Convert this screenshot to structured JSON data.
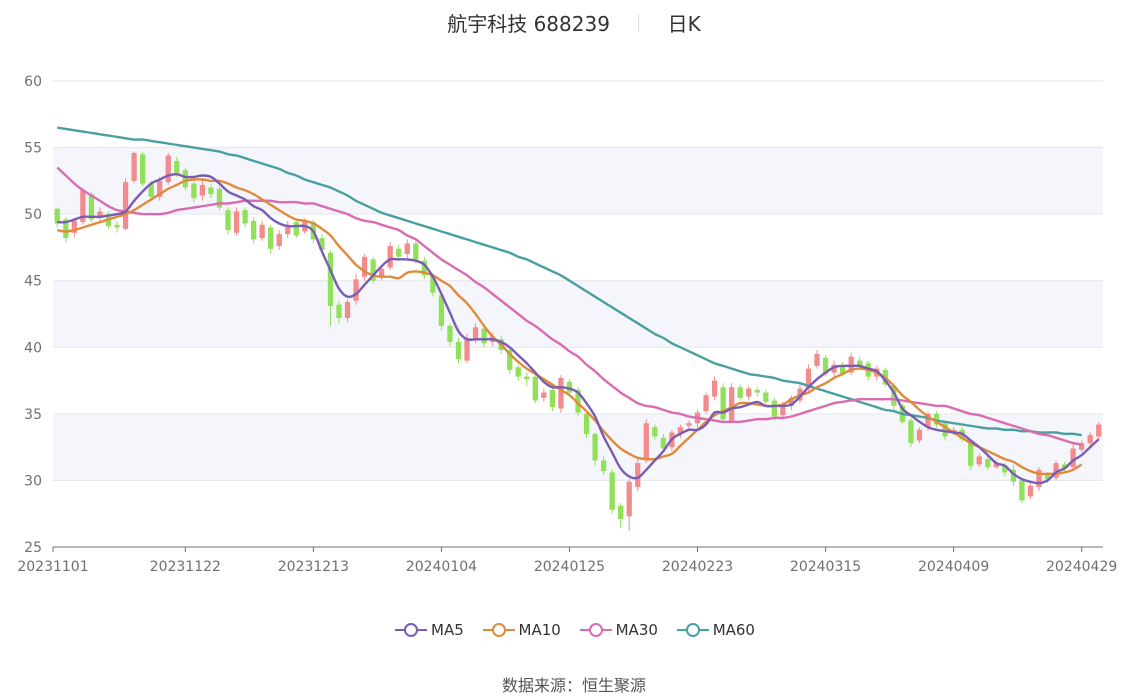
{
  "header": {
    "title": "航宇科技 688239",
    "period": "日K"
  },
  "source": {
    "label": "数据来源：",
    "value": "恒生聚源"
  },
  "colors": {
    "up": "#f28c8c",
    "down": "#91e05a",
    "MA5": "#7b5cb5",
    "MA10": "#e08a3c",
    "MA30": "#d96bb3",
    "MA60": "#4aa0a0",
    "band": "#f5f6fb",
    "grid": "#e3e6ee"
  },
  "chart_data": {
    "type": "candlestick",
    "ylim": [
      25,
      60
    ],
    "y_ticks": [
      "25",
      "30",
      "35",
      "40",
      "45",
      "50",
      "55",
      "60"
    ],
    "x_tick_labels": [
      "20231101",
      "20231122",
      "20231213",
      "20240104",
      "20240125",
      "20240223",
      "20240315",
      "20240409",
      "20240429"
    ],
    "x_tick_index": [
      0,
      15,
      30,
      45,
      60,
      75,
      90,
      105,
      120
    ],
    "legend": [
      {
        "name": "MA5",
        "color": "#7b5cb5"
      },
      {
        "name": "MA10",
        "color": "#e08a3c"
      },
      {
        "name": "MA30",
        "color": "#d96bb3"
      },
      {
        "name": "MA60",
        "color": "#4aa0a0"
      }
    ],
    "candles": [
      [
        50.4,
        49.3,
        50.5,
        49.0
      ],
      [
        49.6,
        48.2,
        49.8,
        47.9
      ],
      [
        48.6,
        49.5,
        49.7,
        48.3
      ],
      [
        49.4,
        51.8,
        52.0,
        49.2
      ],
      [
        51.5,
        49.6,
        51.7,
        49.4
      ],
      [
        49.7,
        50.2,
        50.5,
        49.4
      ],
      [
        50.0,
        49.1,
        50.2,
        48.9
      ],
      [
        49.2,
        49.0,
        49.5,
        48.6
      ],
      [
        48.9,
        52.4,
        52.7,
        48.8
      ],
      [
        52.5,
        54.6,
        54.7,
        52.3
      ],
      [
        54.5,
        52.3,
        54.7,
        52.1
      ],
      [
        52.3,
        51.3,
        52.5,
        51.0
      ],
      [
        51.3,
        52.5,
        52.8,
        51.0
      ],
      [
        52.4,
        54.4,
        54.6,
        52.2
      ],
      [
        54.0,
        53.1,
        54.3,
        52.8
      ],
      [
        53.3,
        52.0,
        53.5,
        51.8
      ],
      [
        52.3,
        51.2,
        52.5,
        50.9
      ],
      [
        51.4,
        52.2,
        52.6,
        51.0
      ],
      [
        52.0,
        51.5,
        52.3,
        51.2
      ],
      [
        51.9,
        50.5,
        52.1,
        50.3
      ],
      [
        50.3,
        48.8,
        50.5,
        48.5
      ],
      [
        48.6,
        50.2,
        50.5,
        48.4
      ],
      [
        50.3,
        49.3,
        50.5,
        49.0
      ],
      [
        49.5,
        48.1,
        49.8,
        47.8
      ],
      [
        48.2,
        49.2,
        49.5,
        48.0
      ],
      [
        49.0,
        47.4,
        49.2,
        47.0
      ],
      [
        47.6,
        48.5,
        48.8,
        47.3
      ],
      [
        48.5,
        49.2,
        49.5,
        48.2
      ],
      [
        49.4,
        48.4,
        49.6,
        48.2
      ],
      [
        48.7,
        49.5,
        49.7,
        48.5
      ],
      [
        49.4,
        48.1,
        49.6,
        47.8
      ],
      [
        48.2,
        47.3,
        48.5,
        47.0
      ],
      [
        47.1,
        43.1,
        47.3,
        41.6
      ],
      [
        43.2,
        42.2,
        43.5,
        41.8
      ],
      [
        42.2,
        43.4,
        43.6,
        41.9
      ],
      [
        43.5,
        45.1,
        45.5,
        43.2
      ],
      [
        45.3,
        46.8,
        47.0,
        45.0
      ],
      [
        46.6,
        45.0,
        46.8,
        44.8
      ],
      [
        45.2,
        45.9,
        46.1,
        45.0
      ],
      [
        46.0,
        47.6,
        47.9,
        45.8
      ],
      [
        47.4,
        46.8,
        47.7,
        46.5
      ],
      [
        47.0,
        47.8,
        48.1,
        46.7
      ],
      [
        47.8,
        46.6,
        48.0,
        46.3
      ],
      [
        46.5,
        45.4,
        46.8,
        45.1
      ],
      [
        45.4,
        44.1,
        45.6,
        43.8
      ],
      [
        43.9,
        41.6,
        44.1,
        41.3
      ],
      [
        41.6,
        40.4,
        41.8,
        40.1
      ],
      [
        40.4,
        39.1,
        40.7,
        38.8
      ],
      [
        39.0,
        40.7,
        41.0,
        38.8
      ],
      [
        40.6,
        41.5,
        41.8,
        40.3
      ],
      [
        41.4,
        40.3,
        41.6,
        40.0
      ],
      [
        40.4,
        40.8,
        41.1,
        40.1
      ],
      [
        40.6,
        39.8,
        40.9,
        39.5
      ],
      [
        39.8,
        38.3,
        40.1,
        38.0
      ],
      [
        38.5,
        37.8,
        38.7,
        37.5
      ],
      [
        37.8,
        37.6,
        38.1,
        37.1
      ],
      [
        37.8,
        36.0,
        38.0,
        35.8
      ],
      [
        36.2,
        36.6,
        36.9,
        35.9
      ],
      [
        36.8,
        35.5,
        37.1,
        35.2
      ],
      [
        35.4,
        37.7,
        37.9,
        35.1
      ],
      [
        37.4,
        36.6,
        37.6,
        36.4
      ],
      [
        36.8,
        35.1,
        37.0,
        34.8
      ],
      [
        35.0,
        33.5,
        35.2,
        33.2
      ],
      [
        33.5,
        31.5,
        33.6,
        31.1
      ],
      [
        31.5,
        30.7,
        31.8,
        30.4
      ],
      [
        30.6,
        27.8,
        30.8,
        27.5
      ],
      [
        28.1,
        27.1,
        28.3,
        26.4
      ],
      [
        27.3,
        29.9,
        30.1,
        26.2
      ],
      [
        29.5,
        31.3,
        31.6,
        29.2
      ],
      [
        31.5,
        34.3,
        34.6,
        31.3
      ],
      [
        34.0,
        33.3,
        34.2,
        33.0
      ],
      [
        33.2,
        32.4,
        33.5,
        32.1
      ],
      [
        32.5,
        33.6,
        33.8,
        32.2
      ],
      [
        33.5,
        34.0,
        34.2,
        33.2
      ],
      [
        34.1,
        34.3,
        34.5,
        33.8
      ],
      [
        34.3,
        35.1,
        35.3,
        34.0
      ],
      [
        35.2,
        36.4,
        36.6,
        35.0
      ],
      [
        36.3,
        37.5,
        37.8,
        36.0
      ],
      [
        37.0,
        34.6,
        37.3,
        34.3
      ],
      [
        34.5,
        37.0,
        37.3,
        34.3
      ],
      [
        37.0,
        36.2,
        37.2,
        36.0
      ],
      [
        36.3,
        36.9,
        37.1,
        36.0
      ],
      [
        36.8,
        36.6,
        37.0,
        36.3
      ],
      [
        36.6,
        35.9,
        36.8,
        35.6
      ],
      [
        36.0,
        34.8,
        36.2,
        34.5
      ],
      [
        34.9,
        35.6,
        35.9,
        34.6
      ],
      [
        35.6,
        36.2,
        36.4,
        35.3
      ],
      [
        36.0,
        36.9,
        37.2,
        35.8
      ],
      [
        36.9,
        38.4,
        38.7,
        36.7
      ],
      [
        38.6,
        39.5,
        39.8,
        38.4
      ],
      [
        39.2,
        38.0,
        39.4,
        37.8
      ],
      [
        38.1,
        38.7,
        39.0,
        37.8
      ],
      [
        38.6,
        38.0,
        38.9,
        37.8
      ],
      [
        38.1,
        39.3,
        39.6,
        37.9
      ],
      [
        39.0,
        38.6,
        39.3,
        38.4
      ],
      [
        38.8,
        37.8,
        39.0,
        37.5
      ],
      [
        37.8,
        38.4,
        38.6,
        37.5
      ],
      [
        38.3,
        37.2,
        38.5,
        37.0
      ],
      [
        37.1,
        35.6,
        37.3,
        35.3
      ],
      [
        35.6,
        34.4,
        35.8,
        34.2
      ],
      [
        34.5,
        32.8,
        34.7,
        32.5
      ],
      [
        33.0,
        33.8,
        34.0,
        32.8
      ],
      [
        34.0,
        35.0,
        35.2,
        33.7
      ],
      [
        35.0,
        34.2,
        35.2,
        34.0
      ],
      [
        34.3,
        33.3,
        34.5,
        33.0
      ],
      [
        33.6,
        33.8,
        34.0,
        33.4
      ],
      [
        33.8,
        33.1,
        34.0,
        32.9
      ],
      [
        32.9,
        31.1,
        33.1,
        30.8
      ],
      [
        31.2,
        31.8,
        32.0,
        31.0
      ],
      [
        31.6,
        31.0,
        31.8,
        30.8
      ],
      [
        31.0,
        31.3,
        31.5,
        30.9
      ],
      [
        31.1,
        30.6,
        31.3,
        30.3
      ],
      [
        30.8,
        29.9,
        31.2,
        29.6
      ],
      [
        30.0,
        28.5,
        30.2,
        28.3
      ],
      [
        28.8,
        29.6,
        29.8,
        28.6
      ],
      [
        29.5,
        30.8,
        31.0,
        29.2
      ],
      [
        30.4,
        30.1,
        30.6,
        29.8
      ],
      [
        30.2,
        31.3,
        31.5,
        30.0
      ],
      [
        31.2,
        30.9,
        31.4,
        30.6
      ],
      [
        31.0,
        32.4,
        32.7,
        30.8
      ],
      [
        32.3,
        32.8,
        33.0,
        32.1
      ],
      [
        32.8,
        33.4,
        33.6,
        32.6
      ],
      [
        33.3,
        34.2,
        34.4,
        33.1
      ]
    ],
    "series": [
      {
        "name": "MA5",
        "values": [
          49.4,
          49.4,
          49.6,
          49.8,
          49.8,
          49.8,
          49.9,
          50.0,
          50.2,
          51.0,
          51.7,
          52.3,
          52.6,
          52.9,
          53.0,
          52.8,
          52.8,
          52.9,
          52.8,
          52.3,
          51.7,
          51.4,
          51.1,
          50.6,
          50.3,
          49.7,
          49.3,
          49.1,
          49.1,
          49.1,
          48.7,
          47.2,
          45.8,
          44.4,
          43.8,
          44.0,
          44.7,
          45.4,
          46.1,
          46.6,
          46.6,
          46.6,
          46.5,
          46.2,
          45.3,
          44.0,
          42.6,
          41.2,
          40.6,
          40.6,
          40.6,
          40.6,
          40.4,
          40.0,
          39.4,
          38.8,
          38.1,
          37.4,
          37.0,
          37.0,
          36.9,
          36.6,
          35.8,
          34.8,
          33.3,
          32.1,
          30.9,
          30.3,
          30.2,
          30.8,
          31.5,
          32.2,
          33.1,
          33.5,
          33.8,
          33.8,
          34.2,
          35.1,
          35.1,
          35.4,
          35.5,
          35.7,
          35.9,
          35.6,
          35.6,
          35.6,
          35.7,
          36.3,
          37.0,
          37.6,
          38.1,
          38.5,
          38.6,
          38.6,
          38.6,
          38.4,
          38.2,
          37.5,
          36.6,
          35.4,
          34.9,
          34.4,
          34.0,
          33.8,
          33.7,
          33.6,
          33.5,
          33.0,
          32.5,
          31.9,
          31.3,
          31.1,
          30.5,
          30.1,
          29.9,
          29.8,
          30.0,
          30.6,
          30.9,
          31.5,
          31.9,
          32.5,
          33.1
        ]
      },
      {
        "name": "MA10",
        "values": [
          48.8,
          48.7,
          48.8,
          49.0,
          49.2,
          49.4,
          49.6,
          49.8,
          50.0,
          50.3,
          50.7,
          51.1,
          51.5,
          51.9,
          52.2,
          52.5,
          52.6,
          52.6,
          52.5,
          52.5,
          52.3,
          52.0,
          51.8,
          51.5,
          51.1,
          50.7,
          50.3,
          49.9,
          49.6,
          49.5,
          49.3,
          48.9,
          48.4,
          47.6,
          46.9,
          46.2,
          45.7,
          45.4,
          45.3,
          45.3,
          45.2,
          45.6,
          45.7,
          45.6,
          45.4,
          45.0,
          44.6,
          43.9,
          43.3,
          42.5,
          41.6,
          40.8,
          40.2,
          39.5,
          38.9,
          38.4,
          38.0,
          37.6,
          37.2,
          36.8,
          36.4,
          35.8,
          35.2,
          34.5,
          33.7,
          33.0,
          32.4,
          32.0,
          31.7,
          31.6,
          31.6,
          31.8,
          32.0,
          32.6,
          33.2,
          33.8,
          34.4,
          34.9,
          35.2,
          35.5,
          35.8,
          35.8,
          35.7,
          35.6,
          35.6,
          35.7,
          36.1,
          36.4,
          36.6,
          37.0,
          37.3,
          37.7,
          38.0,
          38.3,
          38.4,
          38.3,
          38.1,
          37.7,
          37.1,
          36.4,
          35.9,
          35.3,
          34.8,
          34.4,
          34.0,
          33.6,
          33.2,
          32.8,
          32.5,
          32.2,
          31.9,
          31.6,
          31.4,
          31.0,
          30.7,
          30.5,
          30.5,
          30.5,
          30.6,
          30.8,
          31.2
        ]
      },
      {
        "name": "MA30",
        "values": [
          53.5,
          52.9,
          52.3,
          51.8,
          51.4,
          51.0,
          50.6,
          50.3,
          50.2,
          50.1,
          50.0,
          50.0,
          50.0,
          50.1,
          50.3,
          50.4,
          50.5,
          50.6,
          50.7,
          50.8,
          50.8,
          50.9,
          51.0,
          51.0,
          51.0,
          51.0,
          50.9,
          50.9,
          50.9,
          50.8,
          50.8,
          50.6,
          50.4,
          50.2,
          50.0,
          49.7,
          49.5,
          49.4,
          49.2,
          49.0,
          48.8,
          48.4,
          48.1,
          47.6,
          47.1,
          46.6,
          46.2,
          45.8,
          45.4,
          44.9,
          44.5,
          44.0,
          43.5,
          43.0,
          42.5,
          42.0,
          41.6,
          41.1,
          40.6,
          40.2,
          39.7,
          39.3,
          38.7,
          38.2,
          37.6,
          37.1,
          36.6,
          36.2,
          35.8,
          35.6,
          35.5,
          35.3,
          35.1,
          35.0,
          34.8,
          34.7,
          34.6,
          34.5,
          34.4,
          34.4,
          34.4,
          34.5,
          34.6,
          34.6,
          34.7,
          34.7,
          34.8,
          35.0,
          35.2,
          35.4,
          35.6,
          35.8,
          35.9,
          36.0,
          36.1,
          36.1,
          36.1,
          36.1,
          36.1,
          36.0,
          35.9,
          35.8,
          35.7,
          35.6,
          35.6,
          35.4,
          35.2,
          35.0,
          34.9,
          34.7,
          34.5,
          34.3,
          34.1,
          33.9,
          33.7,
          33.5,
          33.4,
          33.2,
          33.0,
          32.8,
          32.7
        ]
      },
      {
        "name": "MA60",
        "values": [
          56.5,
          56.4,
          56.3,
          56.2,
          56.1,
          56.0,
          55.9,
          55.8,
          55.7,
          55.6,
          55.6,
          55.5,
          55.4,
          55.3,
          55.2,
          55.1,
          55.0,
          54.9,
          54.8,
          54.7,
          54.5,
          54.4,
          54.2,
          54.0,
          53.8,
          53.6,
          53.4,
          53.1,
          52.9,
          52.6,
          52.4,
          52.2,
          52.0,
          51.7,
          51.4,
          51.0,
          50.7,
          50.4,
          50.1,
          49.9,
          49.7,
          49.5,
          49.3,
          49.1,
          48.9,
          48.7,
          48.5,
          48.3,
          48.1,
          47.9,
          47.7,
          47.5,
          47.3,
          47.1,
          46.8,
          46.6,
          46.3,
          46.0,
          45.7,
          45.4,
          45.0,
          44.6,
          44.2,
          43.8,
          43.4,
          43.0,
          42.6,
          42.2,
          41.8,
          41.4,
          41.0,
          40.7,
          40.3,
          40.0,
          39.7,
          39.4,
          39.1,
          38.8,
          38.6,
          38.4,
          38.2,
          38.0,
          37.9,
          37.8,
          37.7,
          37.5,
          37.4,
          37.3,
          37.1,
          36.9,
          36.7,
          36.5,
          36.3,
          36.1,
          35.9,
          35.7,
          35.5,
          35.3,
          35.2,
          35.0,
          34.9,
          34.8,
          34.7,
          34.5,
          34.4,
          34.3,
          34.2,
          34.1,
          34.0,
          33.9,
          33.9,
          33.8,
          33.8,
          33.7,
          33.7,
          33.6,
          33.6,
          33.6,
          33.5,
          33.5,
          33.4
        ]
      }
    ]
  }
}
